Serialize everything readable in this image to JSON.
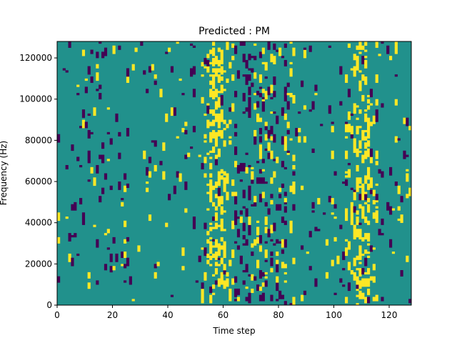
{
  "chart_data": {
    "type": "heatmap",
    "title": "Predicted : PM",
    "xlabel": "Time step",
    "ylabel": "Frequency (Hz)",
    "xlim": [
      0,
      128
    ],
    "ylim": [
      0,
      128000
    ],
    "x_ticks": [
      0,
      20,
      40,
      60,
      80,
      100,
      120
    ],
    "y_ticks": [
      0,
      20000,
      40000,
      60000,
      80000,
      100000,
      120000
    ],
    "grid": false,
    "grid_size": [
      128,
      128
    ],
    "colormap": {
      "low": "#440154",
      "mid": "#21918c",
      "high": "#fde725"
    },
    "background_value": 0.5,
    "cell_values": [
      0,
      0.5,
      1
    ],
    "high_cells_description": "dense clusters of high-value cells concentrated at time steps ~55-60 and ~108-112",
    "low_cells_description": "scattered low-value cells mostly at time steps ~65-80"
  }
}
